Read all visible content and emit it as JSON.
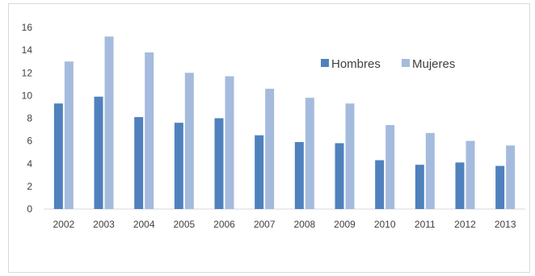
{
  "chart_data": {
    "type": "bar",
    "categories": [
      "2002",
      "2003",
      "2004",
      "2005",
      "2006",
      "2007",
      "2008",
      "2009",
      "2010",
      "2011",
      "2012",
      "2013"
    ],
    "series": [
      {
        "name": "Hombres",
        "values": [
          9.3,
          9.9,
          8.1,
          7.6,
          8.0,
          6.5,
          5.9,
          5.8,
          4.3,
          3.9,
          4.1,
          3.8
        ],
        "color": "#4f81bd"
      },
      {
        "name": "Mujeres",
        "values": [
          13.0,
          15.2,
          13.8,
          12.0,
          11.7,
          10.6,
          9.8,
          9.3,
          7.4,
          6.7,
          6.0,
          5.6
        ],
        "color": "#a5bbdd"
      }
    ],
    "ylim": [
      0,
      16
    ],
    "yticks": [
      "0",
      "2",
      "4",
      "6",
      "8",
      "10",
      "12",
      "14",
      "16"
    ],
    "grid": false,
    "legend_position": "upper-right"
  }
}
